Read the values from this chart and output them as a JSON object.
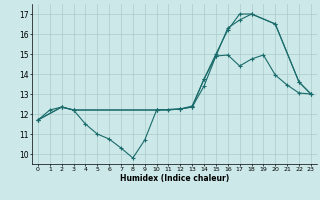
{
  "xlabel": "Humidex (Indice chaleur)",
  "bg_color": "#cce8e8",
  "grid_color": "#aacccc",
  "line_color": "#1a6b6b",
  "xlim": [
    -0.5,
    23.5
  ],
  "ylim": [
    9.5,
    17.5
  ],
  "xticks": [
    0,
    1,
    2,
    3,
    4,
    5,
    6,
    7,
    8,
    9,
    10,
    11,
    12,
    13,
    14,
    15,
    16,
    17,
    18,
    19,
    20,
    21,
    22,
    23
  ],
  "yticks": [
    10,
    11,
    12,
    13,
    14,
    15,
    16,
    17
  ],
  "line1_x": [
    0,
    1,
    2,
    3,
    4,
    5,
    6,
    7,
    8,
    9,
    10,
    11,
    12,
    13,
    14,
    15,
    16,
    17,
    18,
    19,
    20,
    21,
    22,
    23
  ],
  "line1_y": [
    11.7,
    12.2,
    12.35,
    12.2,
    11.5,
    11.0,
    10.75,
    10.3,
    9.8,
    10.7,
    12.2,
    12.2,
    12.25,
    12.35,
    13.75,
    14.9,
    14.95,
    14.4,
    14.75,
    14.95,
    13.95,
    13.45,
    13.05,
    13.0
  ],
  "line2_x": [
    0,
    2,
    3,
    10,
    12,
    13,
    14,
    15,
    16,
    17,
    18,
    20,
    22,
    23
  ],
  "line2_y": [
    11.7,
    12.35,
    12.2,
    12.2,
    12.25,
    12.4,
    13.75,
    15.0,
    16.2,
    17.0,
    17.0,
    16.5,
    13.6,
    13.0
  ],
  "line3_x": [
    0,
    2,
    3,
    10,
    12,
    13,
    14,
    15,
    16,
    17,
    18,
    20,
    22,
    23
  ],
  "line3_y": [
    11.7,
    12.35,
    12.2,
    12.2,
    12.25,
    12.35,
    13.4,
    14.9,
    16.3,
    16.7,
    17.0,
    16.5,
    13.6,
    13.0
  ]
}
